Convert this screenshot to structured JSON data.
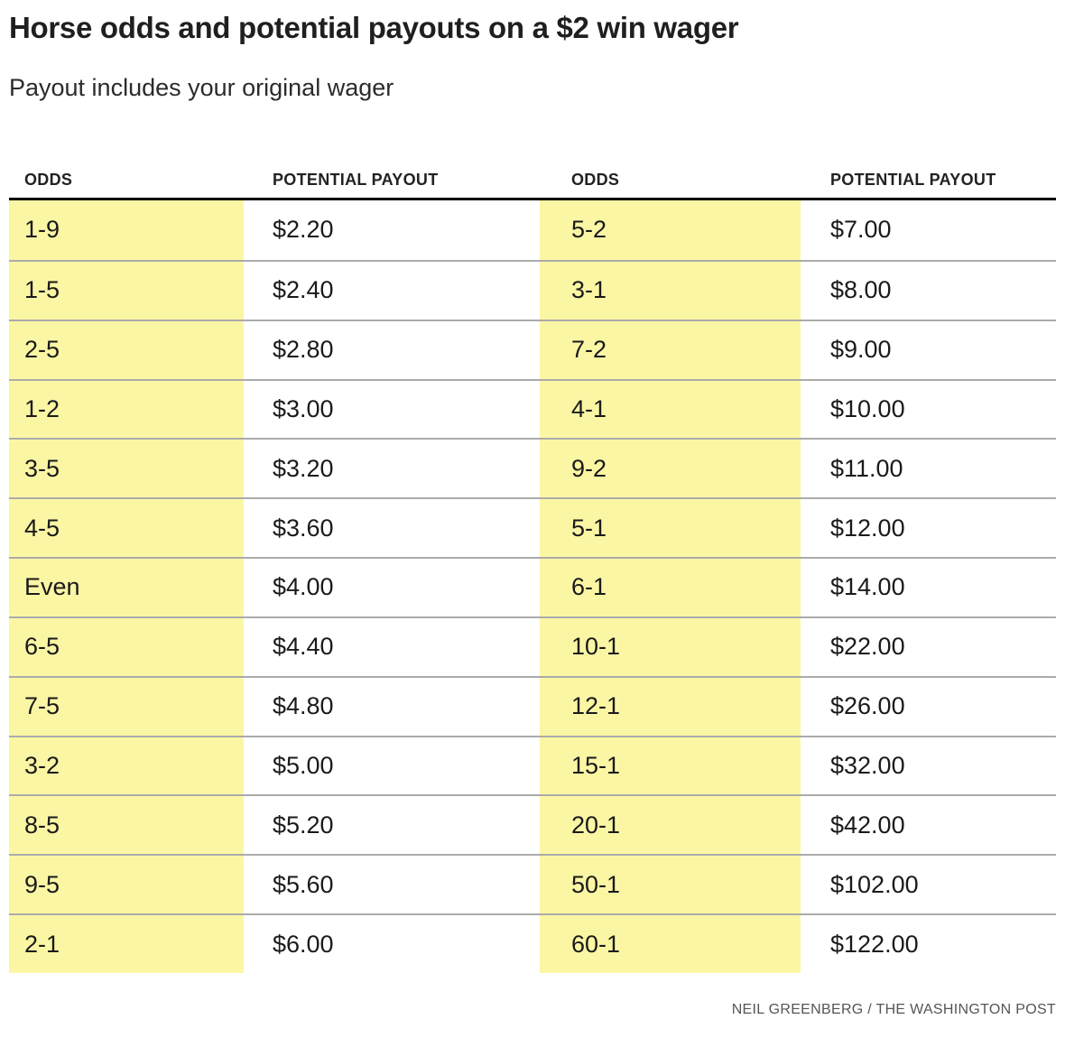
{
  "title": "Horse odds and potential payouts on a $2 win wager",
  "subtitle": "Payout includes your original wager",
  "credit": "NEIL GREENBERG / THE WASHINGTON POST",
  "colors": {
    "odds_highlight": "#FBF6A4",
    "header_rule": "#000000",
    "row_divider": "#ABABAB",
    "body_text": "#1A1A1A",
    "credit_text": "#555555",
    "background": "#FFFFFF"
  },
  "chart_data": {
    "type": "table",
    "title": "Horse odds and potential payouts on a $2 win wager",
    "subtitle": "Payout includes your original wager",
    "columns": [
      "ODDS",
      "POTENTIAL PAYOUT",
      "ODDS",
      "POTENTIAL PAYOUT"
    ],
    "highlighted_column_indexes": [
      0,
      2
    ],
    "rows": [
      [
        "1-9",
        "$2.20",
        "5-2",
        "$7.00"
      ],
      [
        "1-5",
        "$2.40",
        "3-1",
        "$8.00"
      ],
      [
        "2-5",
        "$2.80",
        "7-2",
        "$9.00"
      ],
      [
        "1-2",
        "$3.00",
        "4-1",
        "$10.00"
      ],
      [
        "3-5",
        "$3.20",
        "9-2",
        "$11.00"
      ],
      [
        "4-5",
        "$3.60",
        "5-1",
        "$12.00"
      ],
      [
        "Even",
        "$4.00",
        "6-1",
        "$14.00"
      ],
      [
        "6-5",
        "$4.40",
        "10-1",
        "$22.00"
      ],
      [
        "7-5",
        "$4.80",
        "12-1",
        "$26.00"
      ],
      [
        "3-2",
        "$5.00",
        "15-1",
        "$32.00"
      ],
      [
        "8-5",
        "$5.20",
        "20-1",
        "$42.00"
      ],
      [
        "9-5",
        "$5.60",
        "50-1",
        "$102.00"
      ],
      [
        "2-1",
        "$6.00",
        "60-1",
        "$122.00"
      ]
    ],
    "layout": "two side-by-side odds/payout column pairs, odds cells highlighted yellow, legend off, gridlines horizontal only"
  }
}
